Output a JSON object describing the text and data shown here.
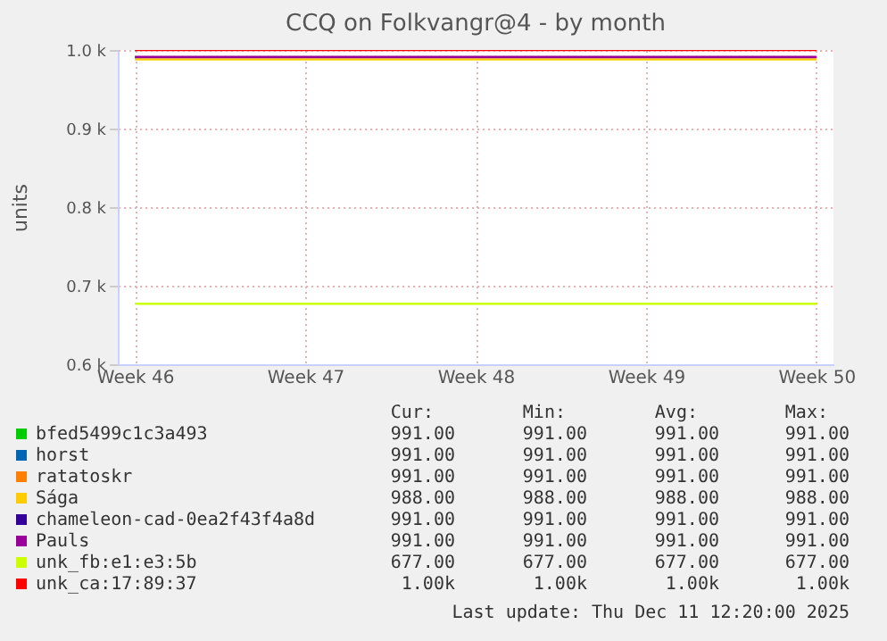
{
  "chart_data": {
    "type": "line",
    "title": "CCQ on Folkvangr@4 - by month",
    "ylabel": "units",
    "categories": [
      "Week 46",
      "Week 47",
      "Week 48",
      "Week 49",
      "Week 50"
    ],
    "ylim": [
      600,
      1000
    ],
    "yticks": [
      {
        "value": 600,
        "label": "0.6 k"
      },
      {
        "value": 700,
        "label": "0.7 k"
      },
      {
        "value": 800,
        "label": "0.8 k"
      },
      {
        "value": 900,
        "label": "0.9 k"
      },
      {
        "value": 1000,
        "label": "1.0 k"
      }
    ],
    "grid": true,
    "legend": "bottom",
    "marker": "none",
    "line_style": "solid",
    "series": [
      {
        "name": "bfed5499c1c3a493",
        "color": "#00cc00",
        "values": [
          null,
          null,
          null,
          null,
          null
        ]
      },
      {
        "name": "horst",
        "color": "#0066b3",
        "values": [
          null,
          null,
          null,
          null,
          null
        ]
      },
      {
        "name": "ratatoskr",
        "color": "#ff8000",
        "values": [
          null,
          null,
          null,
          null,
          null
        ]
      },
      {
        "name": "Sága",
        "color": "#ffcc00",
        "values": [
          988,
          988,
          988,
          988,
          988
        ]
      },
      {
        "name": "chameleon-cad-0ea2f43f4a8d",
        "color": "#330099",
        "values": [
          null,
          null,
          null,
          null,
          null
        ]
      },
      {
        "name": "Pauls",
        "color": "#990099",
        "values": [
          991,
          991,
          991,
          991,
          991
        ]
      },
      {
        "name": "unk_fb:e1:e3:5b",
        "color": "#ccff00",
        "values": [
          677,
          677,
          677,
          677,
          677
        ]
      },
      {
        "name": "unk_ca:17:89:37",
        "color": "#ff0000",
        "values": [
          1000,
          1000,
          1000,
          1000,
          1000
        ]
      }
    ],
    "annotations": [
      "Cur:",
      "Min:",
      "Avg:",
      "Max:",
      "991.00",
      "991.00",
      "991.00",
      "991.00",
      "991.00",
      "991.00",
      "991.00",
      "991.00",
      "991.00",
      "991.00",
      "991.00",
      "991.00",
      "988.00",
      "988.00",
      "988.00",
      "988.00",
      "991.00",
      "991.00",
      "991.00",
      "991.00",
      "991.00",
      "991.00",
      "991.00",
      "991.00",
      "677.00",
      "677.00",
      "677.00",
      "677.00",
      "1.00k",
      "1.00k",
      "1.00k",
      "1.00k",
      "Last update: Thu Dec 11 12:20:00 2025"
    ]
  }
}
